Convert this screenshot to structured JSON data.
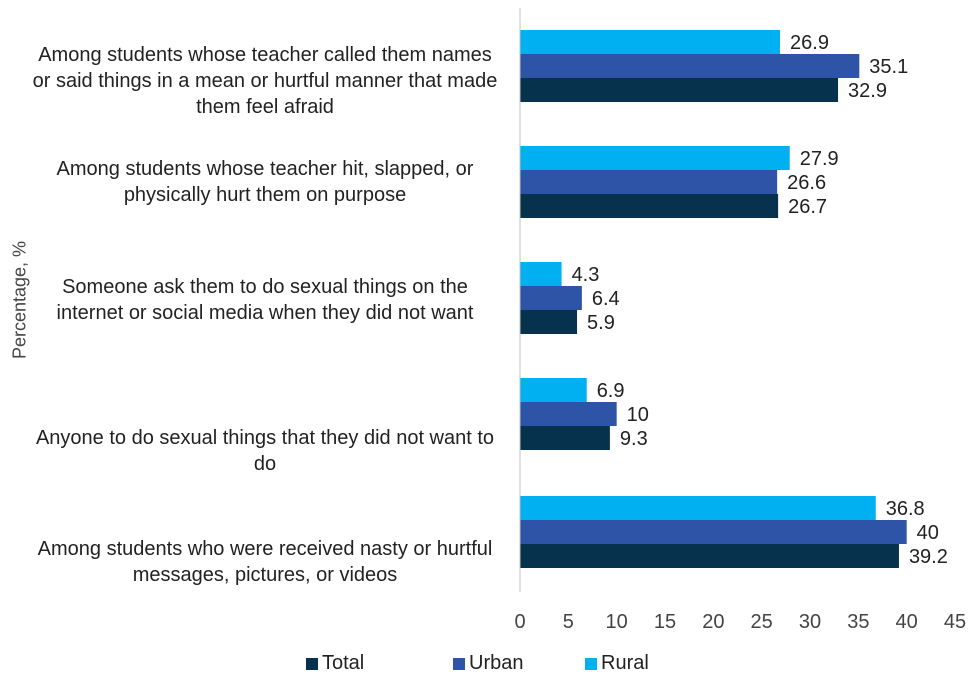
{
  "chart_data": {
    "type": "bar",
    "orientation": "horizontal",
    "ylabel": "Percentage, %",
    "xlim": [
      0,
      45
    ],
    "xticks": [
      0,
      5,
      10,
      15,
      20,
      25,
      30,
      35,
      40,
      45
    ],
    "categories": [
      "Among students whose teacher called them names or said things in a mean or hurtful manner that made them feel afraid",
      "Among students whose teacher hit, slapped, or physically hurt them on purpose",
      "Someone ask them to do sexual things on the internet or social media when they did not want",
      "Anyone to do sexual things that they did not want to do",
      "Among students who were received  nasty or hurtful messages, pictures, or videos"
    ],
    "series": [
      {
        "name": "Rural",
        "color": "#00b0f0",
        "values": [
          26.9,
          27.9,
          4.3,
          6.9,
          36.8
        ],
        "labels": [
          "26.9",
          "27.9",
          "4.3",
          "6.9",
          "36.8"
        ]
      },
      {
        "name": "Urban",
        "color": "#2e54a8",
        "values": [
          35.1,
          26.6,
          6.4,
          10,
          40
        ],
        "labels": [
          "35.1",
          "26.6",
          "6.4",
          "10",
          "40"
        ]
      },
      {
        "name": "Total",
        "color": "#06324d",
        "values": [
          32.9,
          26.7,
          5.9,
          9.3,
          39.2
        ],
        "labels": [
          "32.9",
          "26.7",
          "5.9",
          "9.3",
          "39.2"
        ]
      }
    ],
    "legend": {
      "placement": "bottom",
      "items": [
        {
          "name": "Total",
          "color": "#06324d"
        },
        {
          "name": "Urban",
          "color": "#2e54a8"
        },
        {
          "name": "Rural",
          "color": "#00b0f0"
        }
      ]
    },
    "grid": false
  }
}
